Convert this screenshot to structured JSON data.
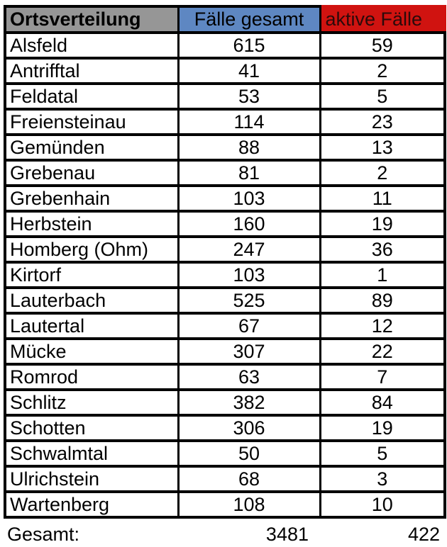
{
  "colors": {
    "header_gray": "#969696",
    "header_blue": "#5E87C2",
    "header_red": "#D01310",
    "red_header_text": "#2B0A0A",
    "border_black": "#000000",
    "text": "#000000"
  },
  "table": {
    "headers": [
      {
        "label": "Ortsverteilung"
      },
      {
        "label": "Fälle gesamt"
      },
      {
        "label": "aktive Fälle"
      }
    ],
    "rows": [
      {
        "name": "Alsfeld",
        "total": "615",
        "active": "59"
      },
      {
        "name": "Antrifftal",
        "total": "41",
        "active": "2"
      },
      {
        "name": "Feldatal",
        "total": "53",
        "active": "5"
      },
      {
        "name": "Freiensteinau",
        "total": "114",
        "active": "23"
      },
      {
        "name": "Gemünden",
        "total": "88",
        "active": "13"
      },
      {
        "name": "Grebenau",
        "total": "81",
        "active": "2"
      },
      {
        "name": "Grebenhain",
        "total": "103",
        "active": "11"
      },
      {
        "name": "Herbstein",
        "total": "160",
        "active": "19"
      },
      {
        "name": "Homberg (Ohm)",
        "total": "247",
        "active": "36"
      },
      {
        "name": "Kirtorf",
        "total": "103",
        "active": "1"
      },
      {
        "name": "Lauterbach",
        "total": "525",
        "active": "89"
      },
      {
        "name": "Lautertal",
        "total": "67",
        "active": "12"
      },
      {
        "name": "Mücke",
        "total": "307",
        "active": "22"
      },
      {
        "name": "Romrod",
        "total": "63",
        "active": "7"
      },
      {
        "name": "Schlitz",
        "total": "382",
        "active": "84"
      },
      {
        "name": "Schotten",
        "total": "306",
        "active": "19"
      },
      {
        "name": "Schwalmtal",
        "total": "50",
        "active": "5"
      },
      {
        "name": "Ulrichstein",
        "total": "68",
        "active": "3"
      },
      {
        "name": "Wartenberg",
        "total": "108",
        "active": "10"
      }
    ],
    "footer": {
      "label": "Gesamt:",
      "total": "3481",
      "active": "422"
    }
  },
  "chart_data": {
    "type": "table",
    "title": "Ortsverteilung",
    "columns": [
      "Ortsverteilung",
      "Fälle gesamt",
      "aktive Fälle"
    ],
    "categories": [
      "Alsfeld",
      "Antrifftal",
      "Feldatal",
      "Freiensteinau",
      "Gemünden",
      "Grebenau",
      "Grebenhain",
      "Herbstein",
      "Homberg (Ohm)",
      "Kirtorf",
      "Lauterbach",
      "Lautertal",
      "Mücke",
      "Romrod",
      "Schlitz",
      "Schotten",
      "Schwalmtal",
      "Ulrichstein",
      "Wartenberg"
    ],
    "series": [
      {
        "name": "Fälle gesamt",
        "values": [
          615,
          41,
          53,
          114,
          88,
          81,
          103,
          160,
          247,
          103,
          525,
          67,
          307,
          63,
          382,
          306,
          50,
          68,
          108
        ]
      },
      {
        "name": "aktive Fälle",
        "values": [
          59,
          2,
          5,
          23,
          13,
          2,
          11,
          19,
          36,
          1,
          89,
          12,
          22,
          7,
          84,
          19,
          5,
          3,
          10
        ]
      }
    ],
    "totals": {
      "label": "Gesamt:",
      "faelle_gesamt": 3481,
      "aktive_faelle": 422
    },
    "header_colors": [
      "#969696",
      "#5E87C2",
      "#D01310"
    ]
  }
}
